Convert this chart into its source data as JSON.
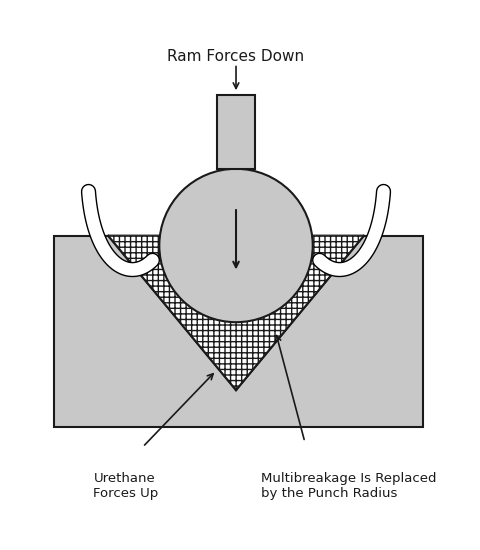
{
  "title": "",
  "bg_color": "#ffffff",
  "gray_color": "#b0b0b0",
  "dark_gray": "#888888",
  "light_gray": "#c8c8c8",
  "stroke_color": "#1a1a1a",
  "text_color": "#1a1a1a",
  "ram_forces_down_label": "Ram Forces Down",
  "urethane_label": "Urethane\nForces Up",
  "multibreakage_label": "Multibreakage Is Replaced\nby the Punch Radius",
  "fig_width": 4.81,
  "fig_height": 5.5,
  "dpi": 100
}
